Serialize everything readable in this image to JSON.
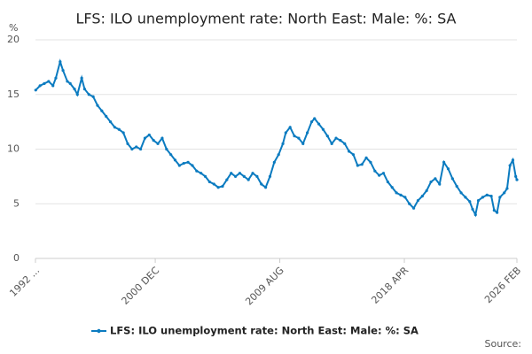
{
  "chart_data": {
    "type": "line",
    "title": "LFS: ILO unemployment rate: North East: Male: %: SA",
    "y_unit_label": "%",
    "source_label": "Source:",
    "x": [
      1992.6,
      1992.9,
      1993.2,
      1993.5,
      1993.8,
      1994.0,
      1994.3,
      1994.5,
      1994.8,
      1995.0,
      1995.3,
      1995.5,
      1995.8,
      1996.0,
      1996.3,
      1996.6,
      1996.9,
      1997.2,
      1997.5,
      1997.8,
      1998.1,
      1998.4,
      1998.7,
      1999.0,
      1999.3,
      1999.6,
      1999.9,
      2000.2,
      2000.5,
      2000.8,
      2001.1,
      2001.4,
      2001.7,
      2002.0,
      2002.3,
      2002.6,
      2002.9,
      2003.2,
      2003.5,
      2003.8,
      2004.1,
      2004.4,
      2004.7,
      2005.0,
      2005.3,
      2005.6,
      2005.9,
      2006.2,
      2006.5,
      2006.8,
      2007.1,
      2007.4,
      2007.7,
      2008.0,
      2008.3,
      2008.6,
      2008.9,
      2009.2,
      2009.5,
      2009.8,
      2010.0,
      2010.3,
      2010.6,
      2010.9,
      2011.2,
      2011.5,
      2011.8,
      2012.0,
      2012.3,
      2012.6,
      2012.9,
      2013.2,
      2013.5,
      2013.8,
      2014.1,
      2014.4,
      2014.7,
      2015.0,
      2015.3,
      2015.6,
      2015.9,
      2016.2,
      2016.5,
      2016.8,
      2017.1,
      2017.4,
      2017.7,
      2018.0,
      2018.3,
      2018.6,
      2018.9,
      2019.2,
      2019.5,
      2019.8,
      2020.1,
      2020.4,
      2020.7,
      2021.0,
      2021.3,
      2021.6,
      2021.9,
      2022.2,
      2022.5,
      2022.8,
      2023.0,
      2023.2,
      2023.4,
      2023.7,
      2024.0,
      2024.3,
      2024.5,
      2024.7,
      2024.9,
      2025.2,
      2025.4,
      2025.6,
      2025.8,
      2026.0,
      2026.083
    ],
    "series": [
      {
        "name": "LFS: ILO unemployment rate: North East: Male: %: SA",
        "color": "#0b7bc0",
        "values": [
          15.4,
          15.8,
          16.0,
          16.2,
          15.8,
          16.5,
          18.0,
          17.2,
          16.2,
          16.0,
          15.5,
          15.0,
          16.5,
          15.5,
          15.0,
          14.8,
          14.0,
          13.5,
          13.0,
          12.5,
          12.0,
          11.8,
          11.5,
          10.5,
          10.0,
          10.2,
          10.0,
          11.0,
          11.3,
          10.8,
          10.5,
          11.0,
          10.0,
          9.5,
          9.0,
          8.5,
          8.7,
          8.8,
          8.5,
          8.0,
          7.8,
          7.5,
          7.0,
          6.8,
          6.5,
          6.6,
          7.2,
          7.8,
          7.5,
          7.8,
          7.5,
          7.2,
          7.8,
          7.5,
          6.8,
          6.5,
          7.5,
          8.8,
          9.5,
          10.5,
          11.5,
          12.0,
          11.2,
          11.0,
          10.5,
          11.5,
          12.5,
          12.8,
          12.3,
          11.8,
          11.2,
          10.5,
          11.0,
          10.8,
          10.5,
          9.8,
          9.5,
          8.5,
          8.6,
          9.2,
          8.8,
          8.0,
          7.6,
          7.8,
          7.0,
          6.5,
          6.0,
          5.8,
          5.6,
          5.0,
          4.6,
          5.3,
          5.7,
          6.2,
          7.0,
          7.3,
          6.8,
          8.8,
          8.2,
          7.3,
          6.6,
          6.0,
          5.6,
          5.2,
          4.5,
          4.0,
          5.3,
          5.6,
          5.8,
          5.7,
          4.4,
          4.2,
          5.6,
          6.0,
          6.4,
          8.5,
          9.0,
          7.5,
          7.2
        ]
      }
    ],
    "xlim": [
      1992.583,
      2026.083
    ],
    "xticks": [
      {
        "value": 1992.583,
        "label": "1992 ..."
      },
      {
        "value": 2000.917,
        "label": "2000 DEC"
      },
      {
        "value": 2009.583,
        "label": "2009 AUG"
      },
      {
        "value": 2018.25,
        "label": "2018 APR"
      },
      {
        "value": 2026.083,
        "label": "2026 FEB"
      }
    ],
    "ylim": [
      0,
      20
    ],
    "yticks": [
      0,
      5,
      10,
      15,
      20
    ],
    "grid": true,
    "legend": "bottom"
  }
}
